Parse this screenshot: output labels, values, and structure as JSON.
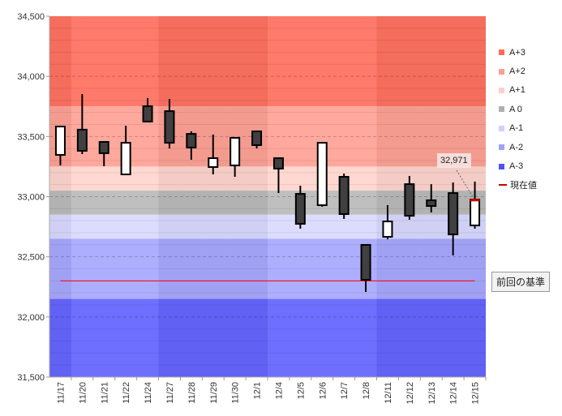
{
  "chart_data": {
    "type": "candlestick",
    "ylim": [
      31500,
      34500
    ],
    "yticks": [
      "31,500",
      "32,000",
      "32,500",
      "33,000",
      "33,500",
      "34,000",
      "34,500"
    ],
    "ytick_values": [
      31500,
      32000,
      32500,
      33000,
      33500,
      34000,
      34500
    ],
    "categories": [
      "11/17",
      "11/20",
      "11/21",
      "11/22",
      "11/24",
      "11/27",
      "11/28",
      "11/29",
      "11/30",
      "12/1",
      "12/4",
      "12/5",
      "12/6",
      "12/7",
      "12/8",
      "12/11",
      "12/12",
      "12/13",
      "12/14",
      "12/15"
    ],
    "week_shade": [
      1,
      0,
      0,
      0,
      0,
      1,
      1,
      1,
      1,
      1,
      0,
      0,
      0,
      0,
      0,
      1,
      1,
      1,
      1,
      1
    ],
    "ohlc": [
      [
        33347,
        33590,
        33260,
        33583
      ],
      [
        33557,
        33853,
        33354,
        33381
      ],
      [
        33455,
        33455,
        33253,
        33361
      ],
      [
        33185,
        33590,
        33185,
        33448
      ],
      [
        33752,
        33819,
        33624,
        33624
      ],
      [
        33711,
        33812,
        33401,
        33448
      ],
      [
        33522,
        33543,
        33307,
        33408
      ],
      [
        33246,
        33516,
        33185,
        33320
      ],
      [
        33260,
        33489,
        33165,
        33489
      ],
      [
        33543,
        33550,
        33401,
        33428
      ],
      [
        33320,
        33320,
        33030,
        33233
      ],
      [
        33023,
        33091,
        32734,
        32774
      ],
      [
        32929,
        33448,
        32916,
        33448
      ],
      [
        33165,
        33192,
        32815,
        32855
      ],
      [
        32599,
        32599,
        32208,
        32309
      ],
      [
        32666,
        32929,
        32646,
        32794
      ],
      [
        33104,
        33172,
        32808,
        32841
      ],
      [
        32970,
        33104,
        32869,
        32922
      ],
      [
        33030,
        33118,
        32511,
        32686
      ],
      [
        32761,
        33125,
        32734,
        32976
      ]
    ],
    "bands": [
      {
        "name": "A+3",
        "from": 33750,
        "to": 34500,
        "color": "#ff7262",
        "legend_color": "#ff6a5a"
      },
      {
        "name": "A+2",
        "from": 33250,
        "to": 33750,
        "color": "#ffa397",
        "legend_color": "#ff9f94"
      },
      {
        "name": "A+1",
        "from": 33050,
        "to": 33250,
        "color": "#ffd6cf",
        "legend_color": "#ffd0cc"
      },
      {
        "name": "A 0",
        "from": 32850,
        "to": 33050,
        "color": "#bbbbbb",
        "legend_color": "#b0b0b0"
      },
      {
        "name": "A-1",
        "from": 32650,
        "to": 32850,
        "color": "#dadaff",
        "legend_color": "#d0d0ff"
      },
      {
        "name": "A-2",
        "from": 32150,
        "to": 32650,
        "color": "#a9a9ff",
        "legend_color": "#a0a0ff"
      },
      {
        "name": "A-3",
        "from": 31500,
        "to": 32150,
        "color": "#6666ff",
        "legend_color": "#5050ff"
      }
    ],
    "current_value": 32971,
    "current_value_label": "32,971",
    "current_legend": "現在値",
    "base_value": 32300,
    "base_label": "前回の基準",
    "colors": {
      "up": "#ffffff",
      "down": "#404040",
      "base_line": "#ff0000",
      "current": "#cc0000"
    }
  }
}
